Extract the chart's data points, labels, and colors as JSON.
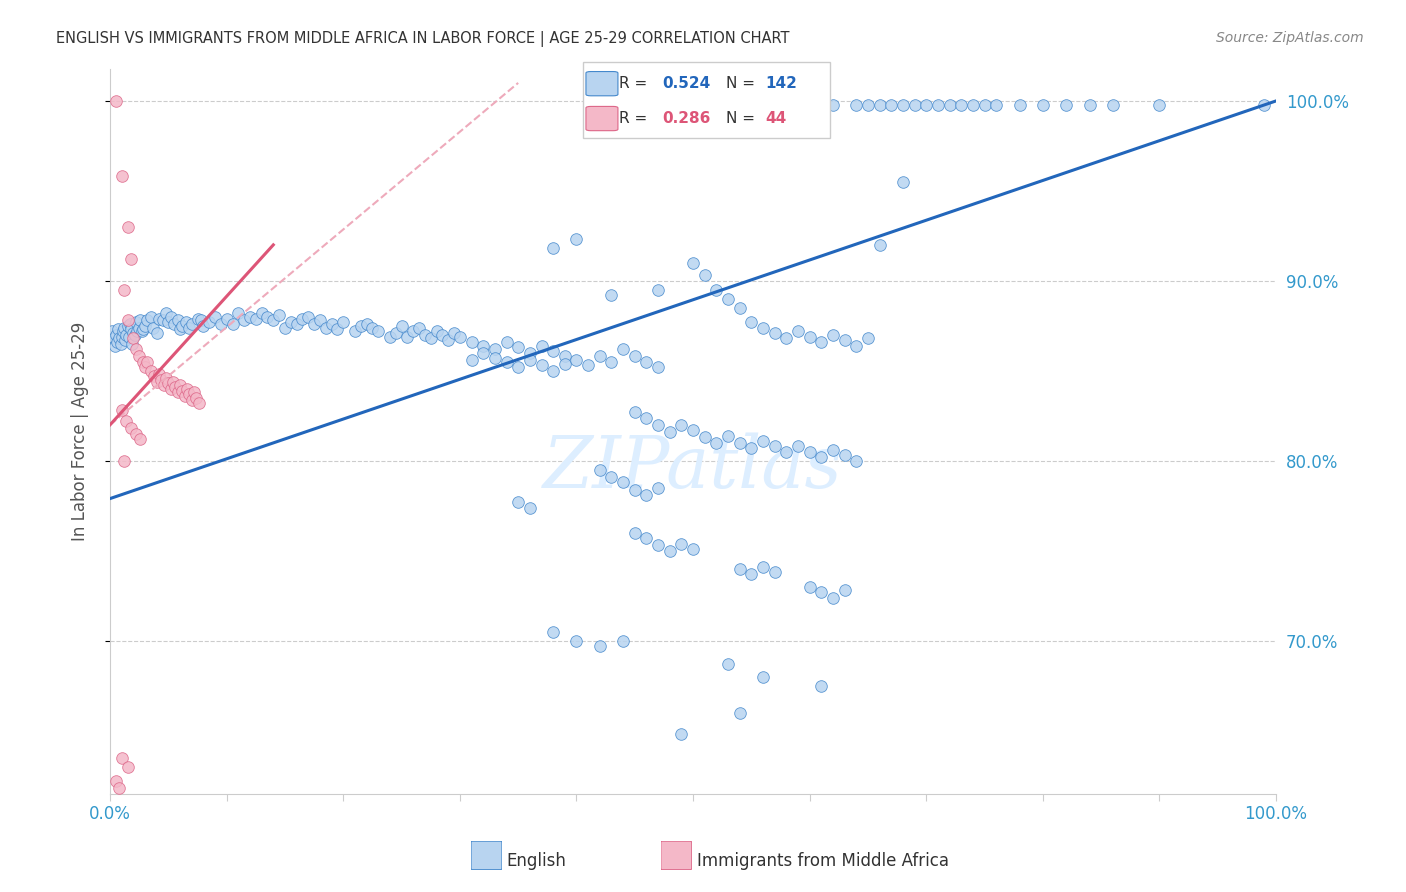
{
  "title": "ENGLISH VS IMMIGRANTS FROM MIDDLE AFRICA IN LABOR FORCE | AGE 25-29 CORRELATION CHART",
  "source": "Source: ZipAtlas.com",
  "ylabel": "In Labor Force | Age 25-29",
  "xlim": [
    0.0,
    1.0
  ],
  "ylim": [
    0.615,
    1.018
  ],
  "y_ticks": [
    0.7,
    0.8,
    0.9,
    1.0
  ],
  "y_tick_labels": [
    "70.0%",
    "80.0%",
    "90.0%",
    "100.0%"
  ],
  "blue_R": 0.524,
  "blue_N": 142,
  "pink_R": 0.286,
  "pink_N": 44,
  "blue_color": "#b8d4f0",
  "blue_edge_color": "#4488cc",
  "blue_line_color": "#2266bb",
  "pink_color": "#f4b8c8",
  "pink_edge_color": "#dd6688",
  "pink_line_color": "#dd5577",
  "pink_dashed_color": "#eeaabb",
  "watermark": "ZIPatlas",
  "watermark_color": "#ddeeff",
  "background_color": "#ffffff",
  "grid_color": "#cccccc",
  "title_color": "#333333",
  "axis_label_color": "#555555",
  "tick_color": "#3399cc",
  "blue_scatter": [
    [
      0.002,
      0.872
    ],
    [
      0.003,
      0.868
    ],
    [
      0.004,
      0.864
    ],
    [
      0.005,
      0.87
    ],
    [
      0.006,
      0.866
    ],
    [
      0.007,
      0.873
    ],
    [
      0.008,
      0.868
    ],
    [
      0.009,
      0.865
    ],
    [
      0.01,
      0.869
    ],
    [
      0.011,
      0.872
    ],
    [
      0.012,
      0.874
    ],
    [
      0.013,
      0.867
    ],
    [
      0.014,
      0.87
    ],
    [
      0.015,
      0.875
    ],
    [
      0.016,
      0.869
    ],
    [
      0.017,
      0.876
    ],
    [
      0.018,
      0.873
    ],
    [
      0.019,
      0.865
    ],
    [
      0.02,
      0.871
    ],
    [
      0.021,
      0.87
    ],
    [
      0.022,
      0.877
    ],
    [
      0.023,
      0.872
    ],
    [
      0.025,
      0.874
    ],
    [
      0.026,
      0.878
    ],
    [
      0.027,
      0.872
    ],
    [
      0.028,
      0.873
    ],
    [
      0.03,
      0.875
    ],
    [
      0.032,
      0.878
    ],
    [
      0.035,
      0.88
    ],
    [
      0.037,
      0.874
    ],
    [
      0.04,
      0.871
    ],
    [
      0.042,
      0.879
    ],
    [
      0.045,
      0.878
    ],
    [
      0.048,
      0.882
    ],
    [
      0.05,
      0.877
    ],
    [
      0.052,
      0.88
    ],
    [
      0.055,
      0.876
    ],
    [
      0.058,
      0.878
    ],
    [
      0.06,
      0.873
    ],
    [
      0.062,
      0.875
    ],
    [
      0.065,
      0.877
    ],
    [
      0.068,
      0.874
    ],
    [
      0.07,
      0.876
    ],
    [
      0.075,
      0.879
    ],
    [
      0.078,
      0.878
    ],
    [
      0.08,
      0.875
    ],
    [
      0.085,
      0.877
    ],
    [
      0.09,
      0.88
    ],
    [
      0.095,
      0.876
    ],
    [
      0.1,
      0.879
    ],
    [
      0.105,
      0.876
    ],
    [
      0.11,
      0.882
    ],
    [
      0.115,
      0.878
    ],
    [
      0.12,
      0.88
    ],
    [
      0.125,
      0.879
    ],
    [
      0.13,
      0.882
    ],
    [
      0.135,
      0.88
    ],
    [
      0.14,
      0.878
    ],
    [
      0.145,
      0.881
    ],
    [
      0.15,
      0.874
    ],
    [
      0.155,
      0.877
    ],
    [
      0.16,
      0.876
    ],
    [
      0.165,
      0.879
    ],
    [
      0.17,
      0.88
    ],
    [
      0.175,
      0.876
    ],
    [
      0.18,
      0.878
    ],
    [
      0.185,
      0.874
    ],
    [
      0.19,
      0.876
    ],
    [
      0.195,
      0.873
    ],
    [
      0.2,
      0.877
    ],
    [
      0.21,
      0.872
    ],
    [
      0.215,
      0.875
    ],
    [
      0.22,
      0.876
    ],
    [
      0.225,
      0.874
    ],
    [
      0.23,
      0.872
    ],
    [
      0.24,
      0.869
    ],
    [
      0.245,
      0.871
    ],
    [
      0.25,
      0.875
    ],
    [
      0.255,
      0.869
    ],
    [
      0.26,
      0.872
    ],
    [
      0.265,
      0.874
    ],
    [
      0.27,
      0.87
    ],
    [
      0.275,
      0.868
    ],
    [
      0.28,
      0.872
    ],
    [
      0.285,
      0.87
    ],
    [
      0.29,
      0.867
    ],
    [
      0.295,
      0.871
    ],
    [
      0.3,
      0.869
    ],
    [
      0.31,
      0.866
    ],
    [
      0.32,
      0.864
    ],
    [
      0.33,
      0.862
    ],
    [
      0.34,
      0.866
    ],
    [
      0.35,
      0.863
    ],
    [
      0.36,
      0.86
    ],
    [
      0.37,
      0.864
    ],
    [
      0.38,
      0.861
    ],
    [
      0.39,
      0.858
    ],
    [
      0.31,
      0.856
    ],
    [
      0.32,
      0.86
    ],
    [
      0.33,
      0.857
    ],
    [
      0.34,
      0.855
    ],
    [
      0.35,
      0.852
    ],
    [
      0.36,
      0.856
    ],
    [
      0.37,
      0.853
    ],
    [
      0.38,
      0.85
    ],
    [
      0.39,
      0.854
    ],
    [
      0.4,
      0.856
    ],
    [
      0.41,
      0.853
    ],
    [
      0.42,
      0.858
    ],
    [
      0.43,
      0.855
    ],
    [
      0.44,
      0.862
    ],
    [
      0.45,
      0.858
    ],
    [
      0.46,
      0.855
    ],
    [
      0.47,
      0.852
    ],
    [
      0.38,
      0.918
    ],
    [
      0.4,
      0.923
    ],
    [
      0.43,
      0.892
    ],
    [
      0.47,
      0.895
    ],
    [
      0.5,
      0.91
    ],
    [
      0.51,
      0.903
    ],
    [
      0.52,
      0.895
    ],
    [
      0.53,
      0.89
    ],
    [
      0.54,
      0.885
    ],
    [
      0.55,
      0.877
    ],
    [
      0.56,
      0.874
    ],
    [
      0.57,
      0.871
    ],
    [
      0.58,
      0.868
    ],
    [
      0.59,
      0.872
    ],
    [
      0.6,
      0.869
    ],
    [
      0.61,
      0.866
    ],
    [
      0.62,
      0.87
    ],
    [
      0.63,
      0.867
    ],
    [
      0.64,
      0.864
    ],
    [
      0.65,
      0.868
    ],
    [
      0.66,
      0.92
    ],
    [
      0.68,
      0.955
    ],
    [
      0.6,
      0.998
    ],
    [
      0.62,
      0.998
    ],
    [
      0.64,
      0.998
    ],
    [
      0.65,
      0.998
    ],
    [
      0.66,
      0.998
    ],
    [
      0.67,
      0.998
    ],
    [
      0.68,
      0.998
    ],
    [
      0.69,
      0.998
    ],
    [
      0.7,
      0.998
    ],
    [
      0.71,
      0.998
    ],
    [
      0.72,
      0.998
    ],
    [
      0.73,
      0.998
    ],
    [
      0.74,
      0.998
    ],
    [
      0.75,
      0.998
    ],
    [
      0.76,
      0.998
    ],
    [
      0.78,
      0.998
    ],
    [
      0.8,
      0.998
    ],
    [
      0.82,
      0.998
    ],
    [
      0.84,
      0.998
    ],
    [
      0.86,
      0.998
    ],
    [
      0.9,
      0.998
    ],
    [
      0.99,
      0.998
    ],
    [
      0.45,
      0.827
    ],
    [
      0.46,
      0.824
    ],
    [
      0.47,
      0.82
    ],
    [
      0.48,
      0.816
    ],
    [
      0.49,
      0.82
    ],
    [
      0.5,
      0.817
    ],
    [
      0.51,
      0.813
    ],
    [
      0.52,
      0.81
    ],
    [
      0.53,
      0.814
    ],
    [
      0.54,
      0.81
    ],
    [
      0.55,
      0.807
    ],
    [
      0.56,
      0.811
    ],
    [
      0.57,
      0.808
    ],
    [
      0.58,
      0.805
    ],
    [
      0.59,
      0.808
    ],
    [
      0.6,
      0.805
    ],
    [
      0.61,
      0.802
    ],
    [
      0.62,
      0.806
    ],
    [
      0.63,
      0.803
    ],
    [
      0.64,
      0.8
    ],
    [
      0.42,
      0.795
    ],
    [
      0.43,
      0.791
    ],
    [
      0.44,
      0.788
    ],
    [
      0.45,
      0.784
    ],
    [
      0.46,
      0.781
    ],
    [
      0.47,
      0.785
    ],
    [
      0.35,
      0.777
    ],
    [
      0.36,
      0.774
    ],
    [
      0.45,
      0.76
    ],
    [
      0.46,
      0.757
    ],
    [
      0.47,
      0.753
    ],
    [
      0.48,
      0.75
    ],
    [
      0.49,
      0.754
    ],
    [
      0.5,
      0.751
    ],
    [
      0.54,
      0.74
    ],
    [
      0.55,
      0.737
    ],
    [
      0.56,
      0.741
    ],
    [
      0.57,
      0.738
    ],
    [
      0.6,
      0.73
    ],
    [
      0.61,
      0.727
    ],
    [
      0.62,
      0.724
    ],
    [
      0.63,
      0.728
    ],
    [
      0.38,
      0.705
    ],
    [
      0.4,
      0.7
    ],
    [
      0.42,
      0.697
    ],
    [
      0.44,
      0.7
    ],
    [
      0.53,
      0.687
    ],
    [
      0.56,
      0.68
    ],
    [
      0.61,
      0.675
    ],
    [
      0.54,
      0.66
    ],
    [
      0.49,
      0.648
    ]
  ],
  "pink_scatter": [
    [
      0.005,
      1.0
    ],
    [
      0.01,
      0.958
    ],
    [
      0.015,
      0.93
    ],
    [
      0.018,
      0.912
    ],
    [
      0.012,
      0.895
    ],
    [
      0.015,
      0.878
    ],
    [
      0.02,
      0.868
    ],
    [
      0.022,
      0.862
    ],
    [
      0.025,
      0.858
    ],
    [
      0.028,
      0.855
    ],
    [
      0.03,
      0.852
    ],
    [
      0.032,
      0.855
    ],
    [
      0.035,
      0.85
    ],
    [
      0.038,
      0.847
    ],
    [
      0.04,
      0.844
    ],
    [
      0.042,
      0.848
    ],
    [
      0.044,
      0.845
    ],
    [
      0.046,
      0.842
    ],
    [
      0.048,
      0.846
    ],
    [
      0.05,
      0.843
    ],
    [
      0.052,
      0.84
    ],
    [
      0.054,
      0.844
    ],
    [
      0.056,
      0.841
    ],
    [
      0.058,
      0.838
    ],
    [
      0.06,
      0.842
    ],
    [
      0.062,
      0.839
    ],
    [
      0.064,
      0.836
    ],
    [
      0.066,
      0.84
    ],
    [
      0.068,
      0.837
    ],
    [
      0.07,
      0.834
    ],
    [
      0.072,
      0.838
    ],
    [
      0.074,
      0.835
    ],
    [
      0.076,
      0.832
    ],
    [
      0.01,
      0.828
    ],
    [
      0.014,
      0.822
    ],
    [
      0.018,
      0.818
    ],
    [
      0.022,
      0.815
    ],
    [
      0.026,
      0.812
    ],
    [
      0.012,
      0.8
    ],
    [
      0.01,
      0.635
    ],
    [
      0.015,
      0.63
    ],
    [
      0.005,
      0.622
    ],
    [
      0.008,
      0.618
    ]
  ],
  "blue_trend": [
    0.0,
    1.0,
    0.779,
    1.0
  ],
  "pink_solid_trend": [
    0.0,
    0.14,
    0.82,
    0.92
  ],
  "pink_dashed_trend": [
    0.0,
    0.35,
    0.82,
    1.01
  ]
}
